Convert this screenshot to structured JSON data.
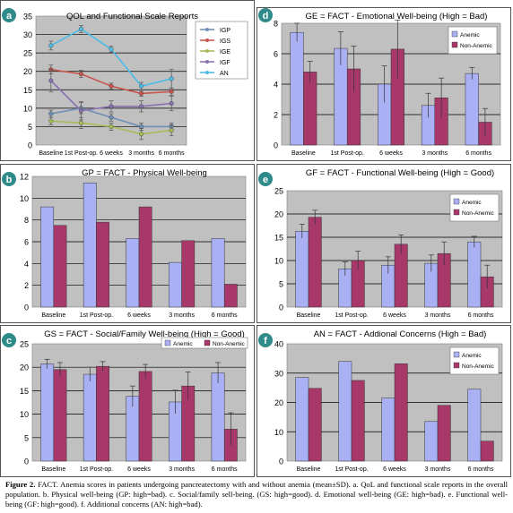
{
  "figure": {
    "caption_bold": "Figure 2.",
    "caption_text": " FACT. Anemia scores in patients undergoing pancreatectomy with and without anemia (mean±SD). a. QoL and functional scale reports in the overall population. b. Physical well-being (GP: high=bad). c. Social/family sell-being. (GS: high=good). d. Emotional well-being (GE: high=bad). e. Functional well-being (GF: high=good). f. Additional concerns (AN: high=bad)."
  },
  "colors": {
    "panel_bg": "#c0c0c0",
    "anemic": "#aab0f4",
    "non_anemic": "#a8386a",
    "IGP": "#6f8fb6",
    "IGS": "#c9554c",
    "IGE": "#a6bd58",
    "IGF": "#8a72b0",
    "AN": "#4dbde6"
  },
  "chart_data": [
    {
      "id": "a",
      "letter": "a",
      "type": "line",
      "title": "QOL and Functional Scale Reports",
      "categories": [
        "Baseline",
        "1st Post-op.",
        "6 weeks",
        "3 months",
        "6 months"
      ],
      "ylim": [
        0,
        35
      ],
      "yticks": [
        0,
        5,
        10,
        15,
        20,
        25,
        30,
        35
      ],
      "legend_position": "right",
      "series": [
        {
          "name": "IGP",
          "values": [
            8.5,
            10,
            7.5,
            5,
            5
          ],
          "err": [
            1,
            1.5,
            1,
            1,
            1
          ]
        },
        {
          "name": "IGS",
          "values": [
            20.5,
            19.3,
            16,
            14,
            14.5
          ],
          "err": [
            1.2,
            1,
            0.8,
            0.8,
            1
          ]
        },
        {
          "name": "IGE",
          "values": [
            6.5,
            6,
            5,
            3,
            4
          ],
          "err": [
            1,
            1.5,
            1,
            1.5,
            1.5
          ]
        },
        {
          "name": "IGF",
          "values": [
            17.5,
            9.3,
            10.5,
            10.5,
            11.3
          ],
          "err": [
            3,
            2.5,
            1.5,
            1.5,
            2
          ]
        },
        {
          "name": "AN",
          "values": [
            27,
            31.5,
            26,
            16,
            18
          ],
          "err": [
            1.2,
            1,
            0.8,
            1,
            2.5
          ]
        }
      ]
    },
    {
      "id": "d",
      "letter": "d",
      "type": "bar",
      "title": "GE = FACT - Emotional Well-being (High = Bad)",
      "categories": [
        "Baseline",
        "1st Post-op.",
        "6 weeks",
        "3 months",
        "6 months"
      ],
      "ylim": [
        0,
        8
      ],
      "yticks": [
        0,
        2,
        4,
        6,
        8
      ],
      "legend_position": "top-right",
      "series": [
        {
          "name": "Anemic",
          "values": [
            7.4,
            6.35,
            4,
            2.6,
            4.7
          ],
          "err": [
            0.6,
            1.1,
            1.2,
            0.8,
            0.4
          ]
        },
        {
          "name": "Non-Anemic",
          "values": [
            4.8,
            5,
            6.3,
            3.1,
            1.5
          ],
          "err": [
            0.7,
            1.5,
            1.9,
            1.3,
            0.9
          ]
        }
      ]
    },
    {
      "id": "b",
      "letter": "b",
      "type": "bar",
      "title": "GP = FACT - Physical Well-being",
      "categories": [
        "Baseline",
        "1st Post-op.",
        "6 weeks",
        "3 months",
        "6 months"
      ],
      "ylim": [
        0,
        12
      ],
      "yticks": [
        0,
        2,
        4,
        6,
        8,
        10,
        12
      ],
      "legend_position": "none",
      "series": [
        {
          "name": "Anemic",
          "values": [
            9.2,
            11.4,
            6.3,
            4.1,
            6.3
          ],
          "err": [
            0,
            0,
            0,
            0,
            0
          ]
        },
        {
          "name": "Non-Anemic",
          "values": [
            7.5,
            7.8,
            9.2,
            6.1,
            2.1
          ],
          "err": [
            0,
            0,
            0,
            0,
            0
          ]
        }
      ]
    },
    {
      "id": "e",
      "letter": "e",
      "type": "bar",
      "title": "GF = FACT - Functional Well-being (High = Good)",
      "categories": [
        "Baseline",
        "1st Post-op.",
        "6 weeks",
        "3 months",
        "6 months"
      ],
      "ylim": [
        0,
        25
      ],
      "yticks": [
        0,
        5,
        10,
        15,
        20,
        25
      ],
      "legend_position": "top-right",
      "series": [
        {
          "name": "Anemic",
          "values": [
            16.3,
            8.2,
            9,
            9.4,
            14
          ],
          "err": [
            1.5,
            1.5,
            1.8,
            1.8,
            1.2
          ]
        },
        {
          "name": "Non-Anemic",
          "values": [
            19.3,
            10,
            13.5,
            11.5,
            6.5
          ],
          "err": [
            1.5,
            2,
            2,
            2.5,
            2.5
          ]
        }
      ]
    },
    {
      "id": "c",
      "letter": "c",
      "type": "bar",
      "title": "GS = FACT - Social/Family Well-being (High = Good)",
      "categories": [
        "Baseline",
        "1st Post-op.",
        "6 weeks",
        "3 months",
        "6 months"
      ],
      "ylim": [
        0,
        25
      ],
      "yticks": [
        0,
        5,
        10,
        15,
        20,
        25
      ],
      "legend_position": "top-right",
      "series": [
        {
          "name": "Anemic",
          "values": [
            20.7,
            18.5,
            13.8,
            12.6,
            18.8
          ],
          "err": [
            1,
            1.5,
            2.2,
            2.5,
            2.2
          ]
        },
        {
          "name": "Non-Anemic",
          "values": [
            19.5,
            20.2,
            19.1,
            16,
            6.8
          ],
          "err": [
            1.5,
            1,
            1.5,
            3,
            3.5
          ]
        }
      ]
    },
    {
      "id": "f",
      "letter": "f",
      "type": "bar",
      "title": "AN = FACT - Addional Concerns (High = Bad)",
      "categories": [
        "Baseline",
        "1st Post-op.",
        "6 weeks",
        "3 months",
        "6 months"
      ],
      "ylim": [
        0,
        40
      ],
      "yticks": [
        0,
        10,
        20,
        30,
        40
      ],
      "legend_position": "top-right",
      "series": [
        {
          "name": "Anemic",
          "values": [
            28.5,
            34,
            21.5,
            13.5,
            24.5
          ],
          "err": [
            0,
            0,
            0,
            0,
            0
          ]
        },
        {
          "name": "Non-Anemic",
          "values": [
            24.8,
            27.5,
            33.2,
            19,
            6.8
          ],
          "err": [
            0,
            0,
            0,
            0,
            0
          ]
        }
      ]
    }
  ]
}
